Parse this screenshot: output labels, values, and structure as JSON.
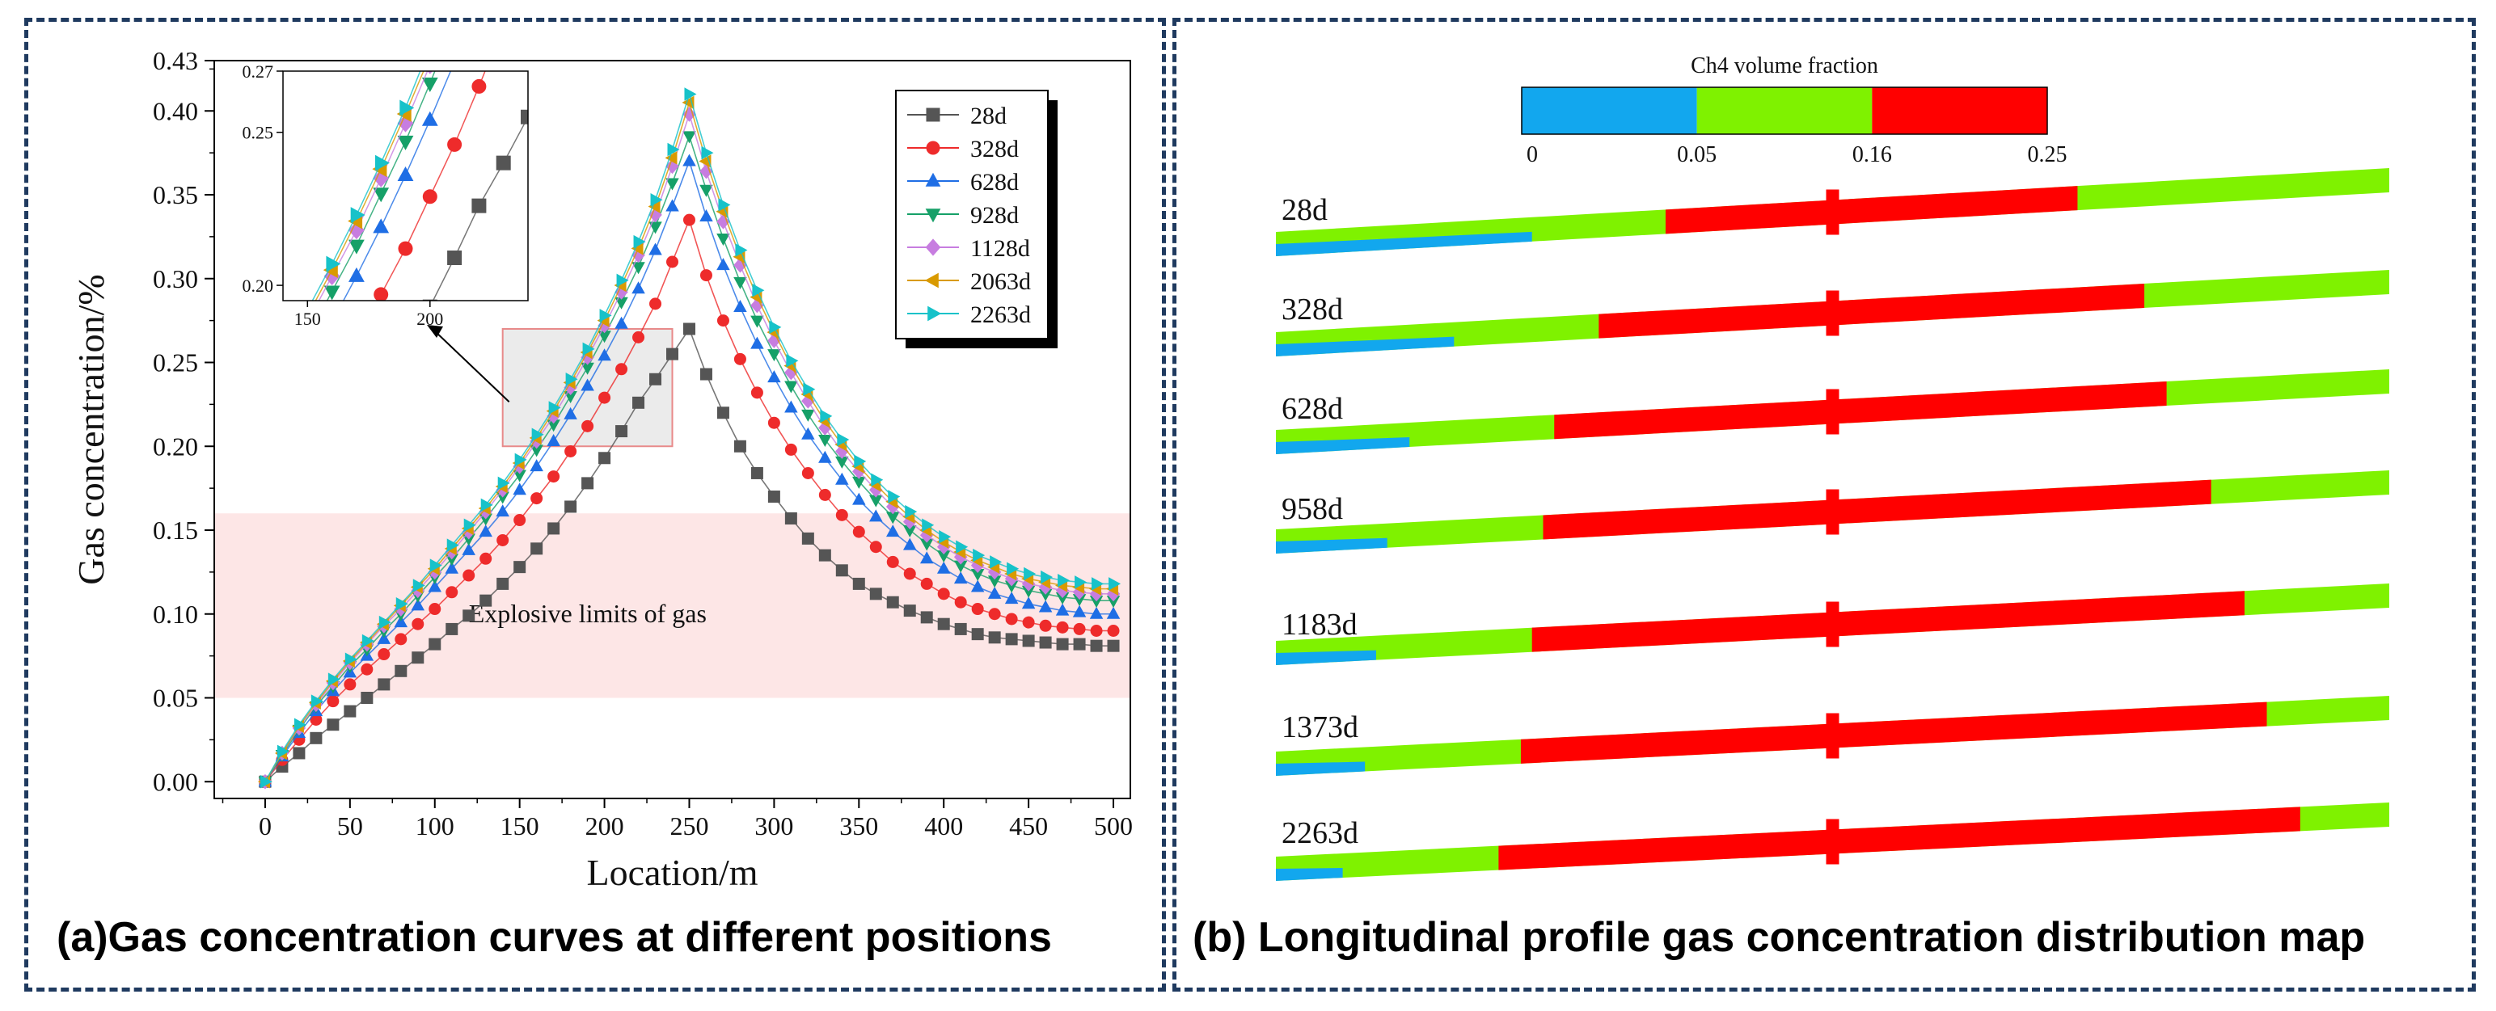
{
  "panels": {
    "a": {
      "caption": "(a)Gas concentration curves at different positions"
    },
    "b": {
      "caption": "(b) Longitudinal profile gas concentration distribution map"
    }
  },
  "chart_data": [
    {
      "type": "line",
      "xlabel": "Location/m",
      "ylabel": "Gas concentration/%",
      "xlim": [
        -30,
        510
      ],
      "ylim": [
        -0.01,
        0.43
      ],
      "xticks": [
        0,
        50,
        100,
        150,
        200,
        250,
        300,
        350,
        400,
        450,
        500
      ],
      "yticks": [
        0.0,
        0.05,
        0.1,
        0.15,
        0.2,
        0.25,
        0.3,
        0.35,
        0.4,
        0.43
      ],
      "ytick_labels": [
        "0.00",
        "0.05",
        "0.10",
        "0.15",
        "0.20",
        "0.25",
        "0.30",
        "0.35",
        "0.40",
        "0.43"
      ],
      "legend_position": "top-right",
      "annotation": "Explosive limits of  gas",
      "explosive_band": [
        0.05,
        0.16
      ],
      "zoom_box": {
        "x": [
          140,
          240
        ],
        "y": [
          0.2,
          0.27
        ]
      },
      "x": [
        0,
        10,
        20,
        30,
        40,
        50,
        60,
        70,
        80,
        90,
        100,
        110,
        120,
        130,
        140,
        150,
        160,
        170,
        180,
        190,
        200,
        210,
        220,
        230,
        240,
        250,
        260,
        270,
        280,
        290,
        300,
        310,
        320,
        330,
        340,
        350,
        360,
        370,
        380,
        390,
        400,
        410,
        420,
        430,
        440,
        450,
        460,
        470,
        480,
        490,
        500
      ],
      "series": [
        {
          "name": "28d",
          "color": "#555555",
          "marker": "square",
          "values": [
            0.0,
            0.009,
            0.017,
            0.026,
            0.034,
            0.042,
            0.05,
            0.058,
            0.066,
            0.074,
            0.082,
            0.091,
            0.099,
            0.108,
            0.118,
            0.128,
            0.139,
            0.151,
            0.164,
            0.178,
            0.193,
            0.209,
            0.226,
            0.24,
            0.255,
            0.27,
            0.243,
            0.22,
            0.2,
            0.184,
            0.17,
            0.157,
            0.145,
            0.135,
            0.126,
            0.118,
            0.112,
            0.107,
            0.102,
            0.098,
            0.094,
            0.091,
            0.088,
            0.086,
            0.085,
            0.084,
            0.083,
            0.082,
            0.082,
            0.081,
            0.081
          ]
        },
        {
          "name": "328d",
          "color": "#ee2b2b",
          "marker": "circle",
          "values": [
            0.0,
            0.013,
            0.025,
            0.037,
            0.048,
            0.058,
            0.067,
            0.076,
            0.085,
            0.094,
            0.103,
            0.113,
            0.123,
            0.133,
            0.144,
            0.156,
            0.169,
            0.182,
            0.197,
            0.212,
            0.229,
            0.246,
            0.265,
            0.285,
            0.31,
            0.335,
            0.302,
            0.275,
            0.252,
            0.232,
            0.214,
            0.198,
            0.184,
            0.171,
            0.159,
            0.149,
            0.14,
            0.131,
            0.124,
            0.118,
            0.112,
            0.107,
            0.103,
            0.1,
            0.097,
            0.095,
            0.093,
            0.092,
            0.091,
            0.09,
            0.09
          ]
        },
        {
          "name": "628d",
          "color": "#1f6ee5",
          "marker": "triangle-up",
          "values": [
            0.0,
            0.015,
            0.029,
            0.042,
            0.054,
            0.065,
            0.075,
            0.085,
            0.095,
            0.105,
            0.116,
            0.127,
            0.138,
            0.149,
            0.161,
            0.174,
            0.188,
            0.203,
            0.219,
            0.236,
            0.254,
            0.273,
            0.294,
            0.317,
            0.343,
            0.37,
            0.337,
            0.308,
            0.283,
            0.261,
            0.241,
            0.223,
            0.207,
            0.193,
            0.18,
            0.168,
            0.158,
            0.149,
            0.141,
            0.133,
            0.127,
            0.121,
            0.116,
            0.112,
            0.109,
            0.106,
            0.104,
            0.102,
            0.101,
            0.1,
            0.1
          ]
        },
        {
          "name": "928d",
          "color": "#16a068",
          "marker": "triangle-down",
          "values": [
            0.0,
            0.016,
            0.031,
            0.045,
            0.057,
            0.069,
            0.079,
            0.09,
            0.1,
            0.111,
            0.122,
            0.133,
            0.145,
            0.157,
            0.17,
            0.183,
            0.198,
            0.213,
            0.23,
            0.247,
            0.266,
            0.286,
            0.307,
            0.331,
            0.357,
            0.385,
            0.353,
            0.324,
            0.298,
            0.275,
            0.255,
            0.236,
            0.219,
            0.204,
            0.191,
            0.179,
            0.168,
            0.158,
            0.15,
            0.142,
            0.135,
            0.129,
            0.124,
            0.12,
            0.117,
            0.114,
            0.112,
            0.11,
            0.109,
            0.108,
            0.108
          ]
        },
        {
          "name": "1128d",
          "color": "#c77de0",
          "marker": "diamond",
          "values": [
            0.0,
            0.017,
            0.032,
            0.046,
            0.059,
            0.071,
            0.082,
            0.093,
            0.103,
            0.114,
            0.125,
            0.137,
            0.149,
            0.161,
            0.174,
            0.188,
            0.203,
            0.218,
            0.235,
            0.253,
            0.272,
            0.292,
            0.314,
            0.338,
            0.367,
            0.398,
            0.364,
            0.334,
            0.308,
            0.284,
            0.263,
            0.244,
            0.227,
            0.211,
            0.197,
            0.185,
            0.174,
            0.164,
            0.155,
            0.147,
            0.14,
            0.134,
            0.129,
            0.125,
            0.121,
            0.118,
            0.116,
            0.114,
            0.113,
            0.112,
            0.112
          ]
        },
        {
          "name": "2063d",
          "color": "#d99a00",
          "marker": "triangle-left",
          "values": [
            0.0,
            0.017,
            0.033,
            0.047,
            0.06,
            0.072,
            0.083,
            0.094,
            0.105,
            0.116,
            0.127,
            0.139,
            0.151,
            0.163,
            0.176,
            0.19,
            0.205,
            0.221,
            0.238,
            0.256,
            0.275,
            0.296,
            0.318,
            0.343,
            0.372,
            0.405,
            0.37,
            0.34,
            0.313,
            0.289,
            0.268,
            0.248,
            0.231,
            0.215,
            0.201,
            0.188,
            0.177,
            0.167,
            0.158,
            0.15,
            0.143,
            0.137,
            0.132,
            0.128,
            0.124,
            0.121,
            0.119,
            0.117,
            0.116,
            0.115,
            0.115
          ]
        },
        {
          "name": "2263d",
          "color": "#17c2c9",
          "marker": "triangle-right",
          "values": [
            0.0,
            0.018,
            0.034,
            0.048,
            0.061,
            0.073,
            0.084,
            0.095,
            0.106,
            0.117,
            0.129,
            0.141,
            0.153,
            0.165,
            0.178,
            0.192,
            0.207,
            0.223,
            0.24,
            0.258,
            0.278,
            0.299,
            0.322,
            0.347,
            0.377,
            0.41,
            0.375,
            0.344,
            0.317,
            0.293,
            0.271,
            0.251,
            0.234,
            0.218,
            0.204,
            0.191,
            0.18,
            0.17,
            0.161,
            0.153,
            0.146,
            0.14,
            0.135,
            0.131,
            0.127,
            0.124,
            0.122,
            0.12,
            0.119,
            0.118,
            0.118
          ]
        }
      ]
    },
    {
      "type": "heatmap",
      "colorbar": {
        "title": "Ch4 volume fraction",
        "tick_labels": [
          "0",
          "0.05",
          "0.16",
          "0.25"
        ],
        "segments": [
          {
            "from": 0.0,
            "to": 0.05,
            "color": "#12a7ee"
          },
          {
            "from": 0.05,
            "to": 0.16,
            "color": "#7ff200"
          },
          {
            "from": 0.16,
            "to": 0.25,
            "color": "#ff0000"
          }
        ]
      },
      "profiles": [
        {
          "label": "28d",
          "blue_to": 0.23,
          "red_from": 0.35,
          "red_to": 0.72
        },
        {
          "label": "328d",
          "blue_to": 0.16,
          "red_from": 0.29,
          "red_to": 0.78
        },
        {
          "label": "628d",
          "blue_to": 0.12,
          "red_from": 0.25,
          "red_to": 0.8
        },
        {
          "label": "958d",
          "blue_to": 0.1,
          "red_from": 0.24,
          "red_to": 0.84
        },
        {
          "label": "1183d",
          "blue_to": 0.09,
          "red_from": 0.23,
          "red_to": 0.87
        },
        {
          "label": "1373d",
          "blue_to": 0.08,
          "red_from": 0.22,
          "red_to": 0.89
        },
        {
          "label": "2263d",
          "blue_to": 0.06,
          "red_from": 0.2,
          "red_to": 0.92
        }
      ]
    }
  ]
}
